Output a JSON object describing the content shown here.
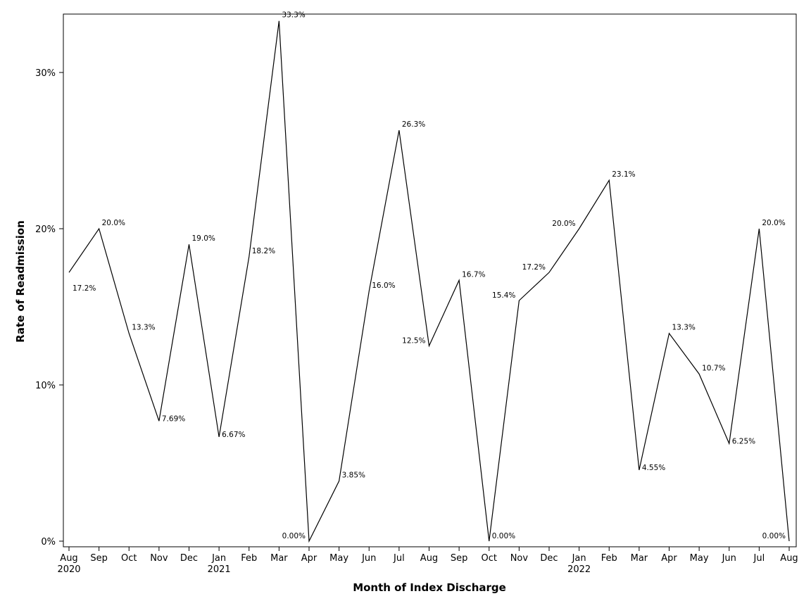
{
  "chart_data": {
    "type": "line",
    "xlabel": "Month of Index Discharge",
    "ylabel": "Rate of Readmission",
    "ylim": [
      0,
      0.33
    ],
    "y_ticks": [
      0,
      0.1,
      0.2,
      0.3
    ],
    "y_tick_labels": [
      "0%",
      "10%",
      "20%",
      "30%"
    ],
    "grid": false,
    "categories": [
      "Aug",
      "Sep",
      "Oct",
      "Nov",
      "Dec",
      "Jan",
      "Feb",
      "Mar",
      "Apr",
      "May",
      "Jun",
      "Jul",
      "Aug",
      "Sep",
      "Oct",
      "Nov",
      "Dec",
      "Jan",
      "Feb",
      "Mar",
      "Apr",
      "May",
      "Jun",
      "Jul",
      "Aug"
    ],
    "year_labels": [
      "2020",
      "",
      "",
      "",
      "",
      "2021",
      "",
      "",
      "",
      "",
      "",
      "",
      "",
      "",
      "",
      "",
      "",
      "2022",
      "",
      "",
      "",
      "",
      "",
      "",
      ""
    ],
    "series": [
      {
        "values": [
          0.172,
          0.2,
          0.133,
          0.0769,
          0.19,
          0.0667,
          0.182,
          0.333,
          0.0,
          0.0385,
          0.16,
          0.263,
          0.125,
          0.167,
          0.0,
          0.154,
          0.172,
          0.2,
          0.231,
          0.0455,
          0.133,
          0.107,
          0.0625,
          0.2,
          0.0
        ],
        "labels": [
          "17.2%",
          "20.0%",
          "13.3%",
          "7.69%",
          "19.0%",
          "6.67%",
          "18.2%",
          "33.3%",
          "0.00%",
          "3.85%",
          "16.0%",
          "26.3%",
          "12.5%",
          "16.7%",
          "0.00%",
          "15.4%",
          "17.2%",
          "20.0%",
          "23.1%",
          "4.55%",
          "13.3%",
          "10.7%",
          "6.25%",
          "20.0%",
          "0.00%"
        ]
      }
    ],
    "color": "#000000"
  }
}
